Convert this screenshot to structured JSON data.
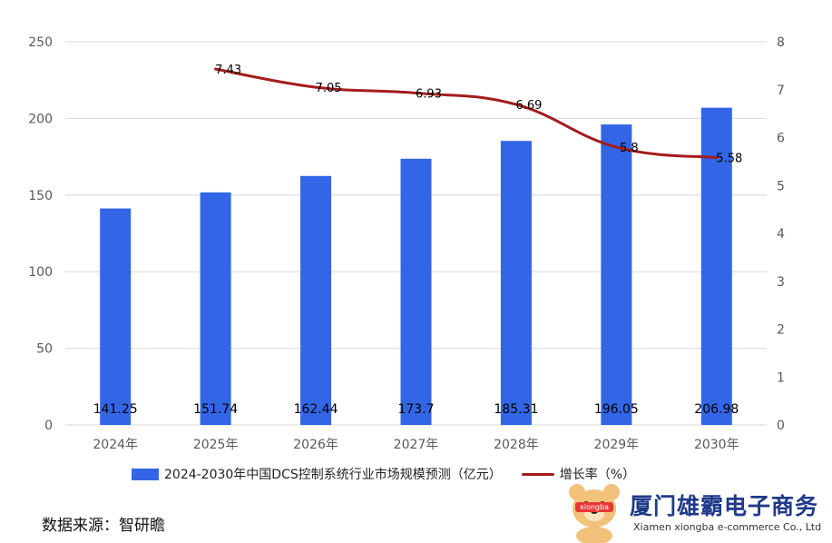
{
  "chart_data": {
    "type": "bar",
    "categories": [
      "2024年",
      "2025年",
      "2026年",
      "2027年",
      "2028年",
      "2029年",
      "2030年"
    ],
    "series": [
      {
        "name": "2024-2030年中国DCS控制系统行业市场规模预测（亿元）",
        "type": "bar",
        "axis": "left",
        "color": "#3366e6",
        "values": [
          141.25,
          151.74,
          162.44,
          173.7,
          185.31,
          196.05,
          206.98
        ],
        "labels": [
          "141.25",
          "151.74",
          "162.44",
          "173.7",
          "185.31",
          "196.05",
          "206.98"
        ]
      },
      {
        "name": "增长率（%）",
        "type": "line",
        "axis": "right",
        "color": "#a51c1c",
        "values": [
          null,
          7.43,
          7.05,
          6.93,
          6.69,
          5.8,
          5.58
        ],
        "labels": [
          "",
          "7.43",
          "7.05",
          "6.93",
          "6.69",
          "5.8",
          "5.58"
        ]
      }
    ],
    "y_left": {
      "lim": [
        0,
        250
      ],
      "ticks": [
        "0",
        "50",
        "100",
        "150",
        "200",
        "250"
      ]
    },
    "y_right": {
      "lim": [
        0,
        8
      ],
      "ticks": [
        "0",
        "1",
        "2",
        "3",
        "4",
        "5",
        "6",
        "7",
        "8"
      ]
    },
    "grid": true,
    "legend_position": "bottom"
  },
  "source": "数据来源：智研瞻",
  "brand": {
    "name": "厦门雄霸电子商务",
    "subtitle": "Xiamen xiongba e-commerce Co., Ltd",
    "mascot_text": "xiongba",
    "colors": {
      "primary": "#1f3a8a",
      "mascot": "#f2c27a"
    }
  }
}
